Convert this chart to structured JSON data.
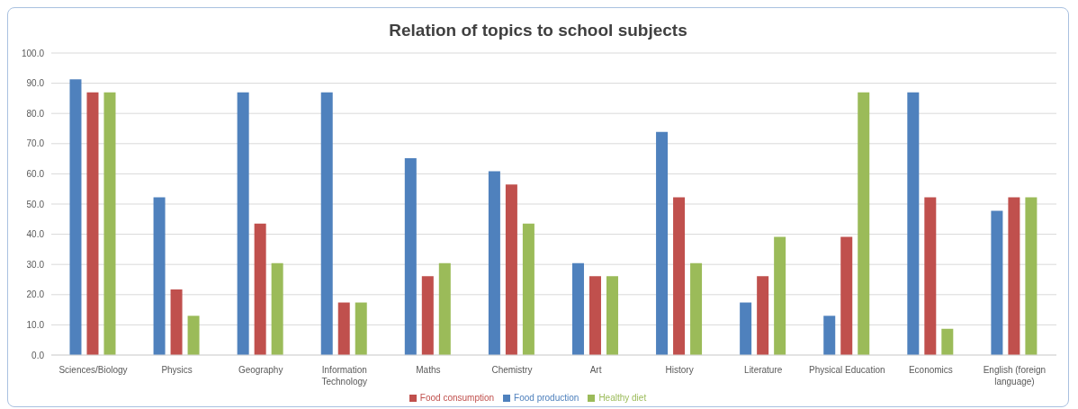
{
  "chart_data": {
    "type": "bar",
    "title": "Relation of topics to school subjects",
    "categories": [
      "Sciences/Biology",
      "Physics",
      "Geography",
      "Information Technology",
      "Maths",
      "Chemistry",
      "Art",
      "History",
      "Literature",
      "Physical Education",
      "Economics",
      "English (foreign language)"
    ],
    "series": [
      {
        "name": "Food production",
        "color": "#4f81bd",
        "values": [
          91.3,
          52.2,
          87.0,
          87.0,
          65.2,
          60.9,
          30.4,
          73.9,
          17.4,
          13.0,
          87.0,
          47.8
        ]
      },
      {
        "name": "Food consumption",
        "color": "#c0504d",
        "values": [
          87.0,
          21.7,
          43.5,
          17.4,
          26.1,
          56.5,
          26.1,
          52.2,
          26.1,
          39.1,
          52.2,
          52.2
        ]
      },
      {
        "name": "Healthy diet",
        "color": "#9bbb59",
        "values": [
          87.0,
          13.0,
          30.4,
          17.4,
          30.4,
          43.5,
          26.1,
          30.4,
          39.1,
          87.0,
          8.7,
          52.2
        ]
      }
    ],
    "ylim": [
      0,
      100
    ],
    "yticks": [
      {
        "value": 0,
        "label": "0.0"
      },
      {
        "value": 10,
        "label": "10.0"
      },
      {
        "value": 20,
        "label": "20.0"
      },
      {
        "value": 30,
        "label": "30.0"
      },
      {
        "value": 40,
        "label": "40.0"
      },
      {
        "value": 50,
        "label": "50.0"
      },
      {
        "value": 60,
        "label": "60.0"
      },
      {
        "value": 70,
        "label": "70.0"
      },
      {
        "value": 80,
        "label": "80.0"
      },
      {
        "value": 90,
        "label": "90.0"
      },
      {
        "value": 100,
        "label": "100.0"
      }
    ],
    "grid": "y",
    "legend": "bottom"
  }
}
